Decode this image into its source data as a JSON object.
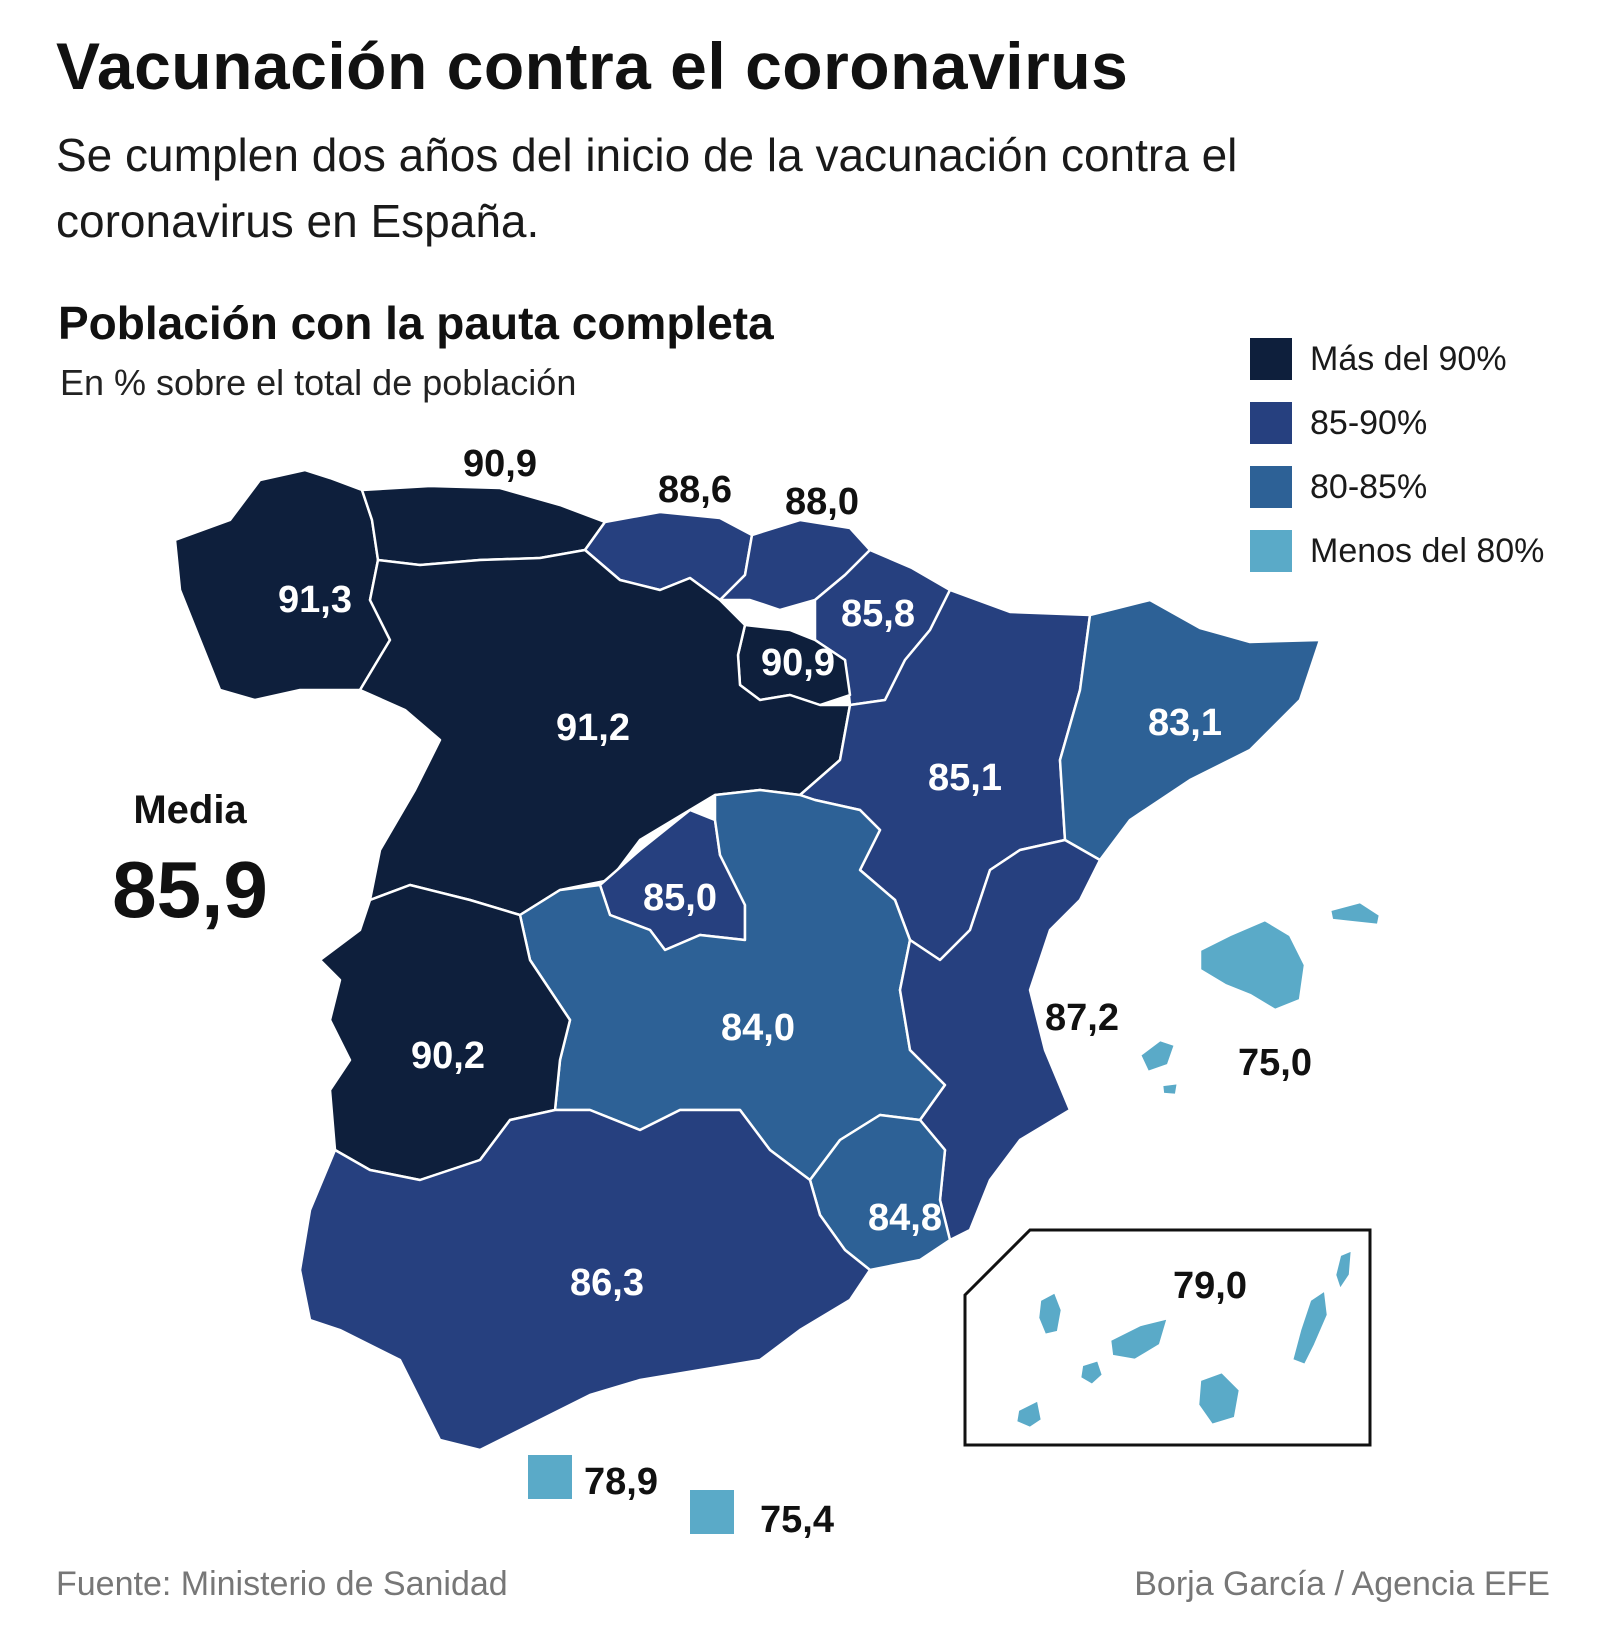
{
  "title": "Vacunación contra el coronavirus",
  "subtitle": "Se cumplen dos años del inicio de la vacunación contra el coronavirus en España.",
  "map_title": "Población con la pauta completa",
  "map_subtitle": "En % sobre el total de población",
  "legend": [
    {
      "label": "Más del 90%",
      "color": "#0e1f3c"
    },
    {
      "label": "85-90%",
      "color": "#26407f"
    },
    {
      "label": "80-85%",
      "color": "#2d6196"
    },
    {
      "label": "Menos del 80%",
      "color": "#5aaac8"
    }
  ],
  "media": {
    "label": "Media",
    "value": "85,9"
  },
  "regions": {
    "galicia": {
      "value": "91,3",
      "color": "#0e1f3c"
    },
    "asturias": {
      "value": "90,9",
      "color": "#0e1f3c"
    },
    "cantabria": {
      "value": "88,6",
      "color": "#26407f"
    },
    "pais_vasco": {
      "value": "88,0",
      "color": "#26407f"
    },
    "navarra": {
      "value": "85,8",
      "color": "#26407f"
    },
    "la_rioja": {
      "value": "90,9",
      "color": "#0e1f3c"
    },
    "castilla_leon": {
      "value": "91,2",
      "color": "#0e1f3c"
    },
    "aragon": {
      "value": "85,1",
      "color": "#26407f"
    },
    "cataluna": {
      "value": "83,1",
      "color": "#2d6196"
    },
    "madrid": {
      "value": "85,0",
      "color": "#26407f"
    },
    "castilla_la_mancha": {
      "value": "84,0",
      "color": "#2d6196"
    },
    "extremadura": {
      "value": "90,2",
      "color": "#0e1f3c"
    },
    "valencia": {
      "value": "87,2",
      "color": "#26407f"
    },
    "baleares": {
      "value": "75,0",
      "color": "#5aaac8"
    },
    "murcia": {
      "value": "84,8",
      "color": "#2d6196"
    },
    "andalucia": {
      "value": "86,3",
      "color": "#26407f"
    },
    "canarias": {
      "value": "79,0",
      "color": "#5aaac8"
    },
    "ceuta": {
      "value": "78,9",
      "color": "#5aaac8"
    },
    "melilla": {
      "value": "75,4",
      "color": "#5aaac8"
    }
  },
  "source": "Fuente:  Ministerio de Sanidad",
  "credit": "Borja García / Agencia EFE"
}
